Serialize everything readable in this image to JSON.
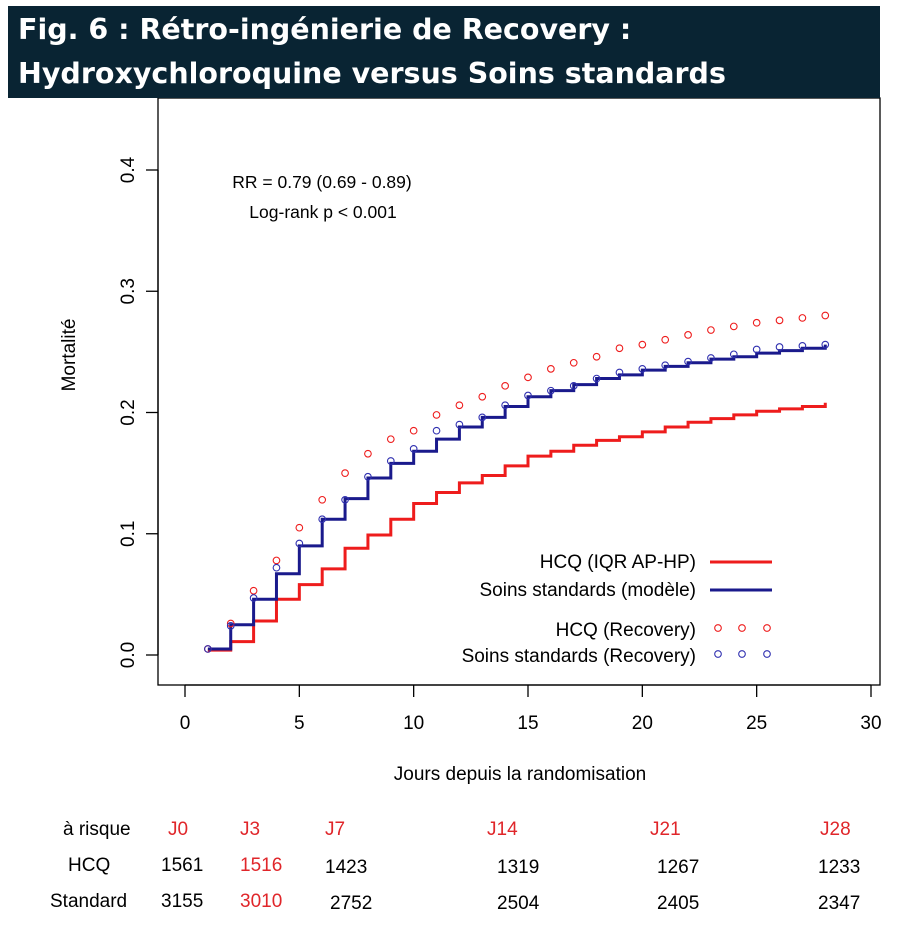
{
  "figure": {
    "title_line1": "Fig. 6 : Rétro-ingénierie de Recovery :",
    "title_line2": "Hydroxychloroquine versus Soins standards"
  },
  "chart_data": {
    "type": "line",
    "xlabel": "Jours depuis la randomisation",
    "ylabel": "Mortalité",
    "xlim": [
      0,
      30
    ],
    "ylim": [
      0,
      0.4
    ],
    "x_ticks": [
      0,
      5,
      10,
      15,
      20,
      25,
      30
    ],
    "y_ticks": [
      0.0,
      0.1,
      0.2,
      0.3,
      0.4
    ],
    "grid": false,
    "legend_position": "bottom-right",
    "annotations": [
      "RR = 0.79 (0.69 - 0.89)",
      "Log-rank p < 0.001"
    ],
    "series": [
      {
        "name": "HCQ (IQR AP-HP)",
        "style": "step",
        "color": "#ee1c1c",
        "x": [
          1,
          2,
          3,
          4,
          5,
          6,
          7,
          8,
          9,
          10,
          11,
          12,
          13,
          14,
          15,
          16,
          17,
          18,
          19,
          20,
          21,
          22,
          23,
          24,
          25,
          26,
          27,
          28
        ],
        "y": [
          0.004,
          0.011,
          0.028,
          0.046,
          0.058,
          0.071,
          0.088,
          0.099,
          0.112,
          0.125,
          0.134,
          0.142,
          0.148,
          0.156,
          0.164,
          0.168,
          0.173,
          0.177,
          0.18,
          0.184,
          0.188,
          0.192,
          0.195,
          0.198,
          0.201,
          0.203,
          0.205,
          0.208
        ]
      },
      {
        "name": "Soins standards (modèle)",
        "style": "step",
        "color": "#1a1a8c",
        "x": [
          1,
          2,
          3,
          4,
          5,
          6,
          7,
          8,
          9,
          10,
          11,
          12,
          13,
          14,
          15,
          16,
          17,
          18,
          19,
          20,
          21,
          22,
          23,
          24,
          25,
          26,
          27,
          28
        ],
        "y": [
          0.005,
          0.025,
          0.046,
          0.067,
          0.09,
          0.112,
          0.129,
          0.146,
          0.158,
          0.168,
          0.178,
          0.188,
          0.196,
          0.205,
          0.213,
          0.218,
          0.223,
          0.228,
          0.231,
          0.235,
          0.238,
          0.241,
          0.244,
          0.246,
          0.249,
          0.251,
          0.253,
          0.256
        ]
      },
      {
        "name": "HCQ (Recovery)",
        "style": "points",
        "color": "#ee1c1c",
        "x": [
          1,
          2,
          3,
          4,
          5,
          6,
          7,
          8,
          9,
          10,
          11,
          12,
          13,
          14,
          15,
          16,
          17,
          18,
          19,
          20,
          21,
          22,
          23,
          24,
          25,
          26,
          27,
          28
        ],
        "y": [
          0.005,
          0.026,
          0.053,
          0.078,
          0.105,
          0.128,
          0.15,
          0.166,
          0.178,
          0.185,
          0.198,
          0.206,
          0.213,
          0.222,
          0.229,
          0.236,
          0.241,
          0.246,
          0.253,
          0.256,
          0.26,
          0.264,
          0.268,
          0.271,
          0.274,
          0.276,
          0.278,
          0.28
        ]
      },
      {
        "name": "Soins standards (Recovery)",
        "style": "points",
        "color": "#3030b0",
        "x": [
          1,
          2,
          3,
          4,
          5,
          6,
          7,
          8,
          9,
          10,
          11,
          12,
          13,
          14,
          15,
          16,
          17,
          18,
          19,
          20,
          21,
          22,
          23,
          24,
          25,
          26,
          27,
          28
        ],
        "y": [
          0.005,
          0.024,
          0.047,
          0.072,
          0.092,
          0.112,
          0.128,
          0.147,
          0.16,
          0.17,
          0.185,
          0.19,
          0.196,
          0.206,
          0.214,
          0.218,
          0.222,
          0.228,
          0.233,
          0.236,
          0.239,
          0.242,
          0.245,
          0.248,
          0.252,
          0.254,
          0.255,
          0.256
        ]
      }
    ]
  },
  "risk_table": {
    "header_label": "à risque",
    "day_labels": [
      "J0",
      "J3",
      "J7",
      "J14",
      "J21",
      "J28"
    ],
    "rows": [
      {
        "label": "HCQ",
        "values": [
          "1561",
          "1516",
          "1423",
          "1319",
          "1267",
          "1233"
        ]
      },
      {
        "label": "Standard",
        "values": [
          "3155",
          "3010",
          "2752",
          "2504",
          "2405",
          "2347"
        ]
      }
    ]
  }
}
